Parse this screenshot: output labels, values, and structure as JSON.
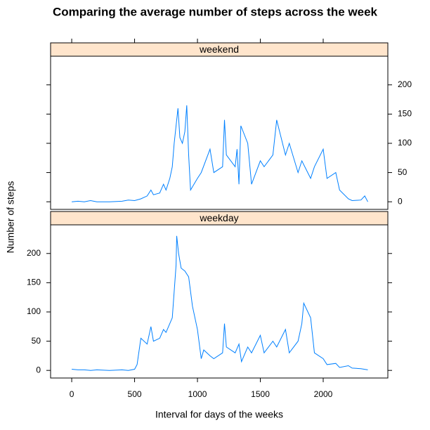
{
  "chart_data": {
    "type": "line",
    "title": "Comparing the average number of steps across the week",
    "x_label": "Interval for days of the weeks",
    "y_label": "Number of steps",
    "color": "#0080ff",
    "strip_color": "#ffe5cc",
    "xlim": [
      -168,
      2514
    ],
    "xticks": [
      0,
      500,
      1000,
      1500,
      2000
    ],
    "ylim": [
      -13,
      249
    ],
    "yticks": [
      0,
      50,
      100,
      150,
      200
    ],
    "panels": [
      {
        "name": "weekend",
        "x": [
          0,
          50,
          100,
          150,
          200,
          300,
          400,
          450,
          500,
          550,
          600,
          630,
          650,
          700,
          730,
          750,
          780,
          800,
          815,
          830,
          845,
          860,
          880,
          900,
          915,
          930,
          945,
          1000,
          1030,
          1100,
          1130,
          1200,
          1215,
          1230,
          1300,
          1315,
          1330,
          1345,
          1400,
          1430,
          1500,
          1530,
          1600,
          1630,
          1700,
          1730,
          1800,
          1830,
          1900,
          1930,
          2000,
          2030,
          2100,
          2130,
          2200,
          2230,
          2300,
          2330,
          2355
        ],
        "values": [
          0,
          1,
          0,
          2,
          0,
          0,
          1,
          3,
          2,
          5,
          10,
          20,
          12,
          15,
          30,
          20,
          40,
          60,
          100,
          130,
          160,
          110,
          100,
          120,
          165,
          80,
          20,
          40,
          50,
          90,
          50,
          60,
          140,
          80,
          60,
          90,
          30,
          130,
          100,
          30,
          70,
          60,
          80,
          140,
          80,
          100,
          50,
          70,
          40,
          60,
          90,
          40,
          50,
          20,
          5,
          2,
          3,
          10,
          0
        ]
      },
      {
        "name": "weekday",
        "x": [
          0,
          50,
          100,
          150,
          200,
          300,
          400,
          450,
          500,
          520,
          550,
          600,
          630,
          650,
          700,
          730,
          750,
          800,
          830,
          835,
          850,
          870,
          900,
          930,
          960,
          1000,
          1030,
          1050,
          1100,
          1130,
          1200,
          1215,
          1230,
          1300,
          1330,
          1350,
          1400,
          1430,
          1500,
          1530,
          1600,
          1630,
          1700,
          1730,
          1800,
          1830,
          1845,
          1900,
          1930,
          2000,
          2030,
          2100,
          2130,
          2200,
          2230,
          2300,
          2355
        ],
        "values": [
          2,
          1,
          1,
          0,
          1,
          0,
          1,
          0,
          2,
          10,
          55,
          45,
          75,
          50,
          55,
          70,
          65,
          90,
          180,
          230,
          200,
          175,
          170,
          160,
          110,
          70,
          20,
          35,
          25,
          20,
          30,
          80,
          40,
          30,
          45,
          15,
          40,
          30,
          60,
          30,
          50,
          40,
          70,
          30,
          50,
          80,
          115,
          90,
          30,
          20,
          10,
          12,
          5,
          8,
          4,
          3,
          1
        ]
      }
    ]
  }
}
